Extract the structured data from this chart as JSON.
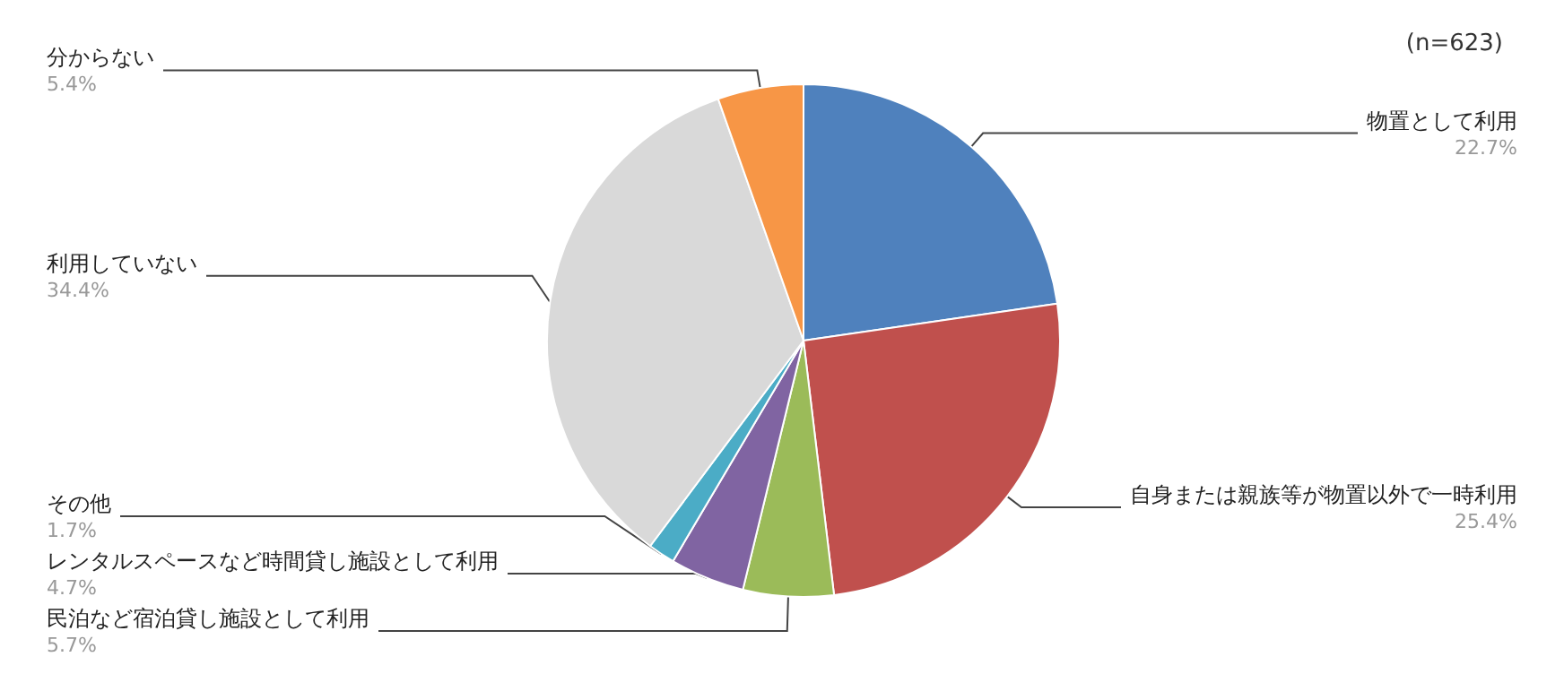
{
  "chart_data": {
    "type": "pie",
    "categories": [
      "物置として利用",
      "自身または親族等が物置以外で一時利用",
      "民泊など宿泊貸し施設として利用",
      "レンタルスペースなど時間貸し施設として利用",
      "その他",
      "利用していない",
      "分からない"
    ],
    "values": [
      22.7,
      25.4,
      5.7,
      4.7,
      1.7,
      34.4,
      5.4
    ],
    "value_labels": [
      "22.7%",
      "25.4%",
      "5.7%",
      "4.7%",
      "1.7%",
      "34.4%",
      "5.4%"
    ],
    "colors": [
      "#4f81bd",
      "#c0504d",
      "#9bbb59",
      "#8064a2",
      "#4bacc6",
      "#d9d9d9",
      "#f79646"
    ],
    "annotations": [
      "(n=623)"
    ],
    "legend": false
  }
}
